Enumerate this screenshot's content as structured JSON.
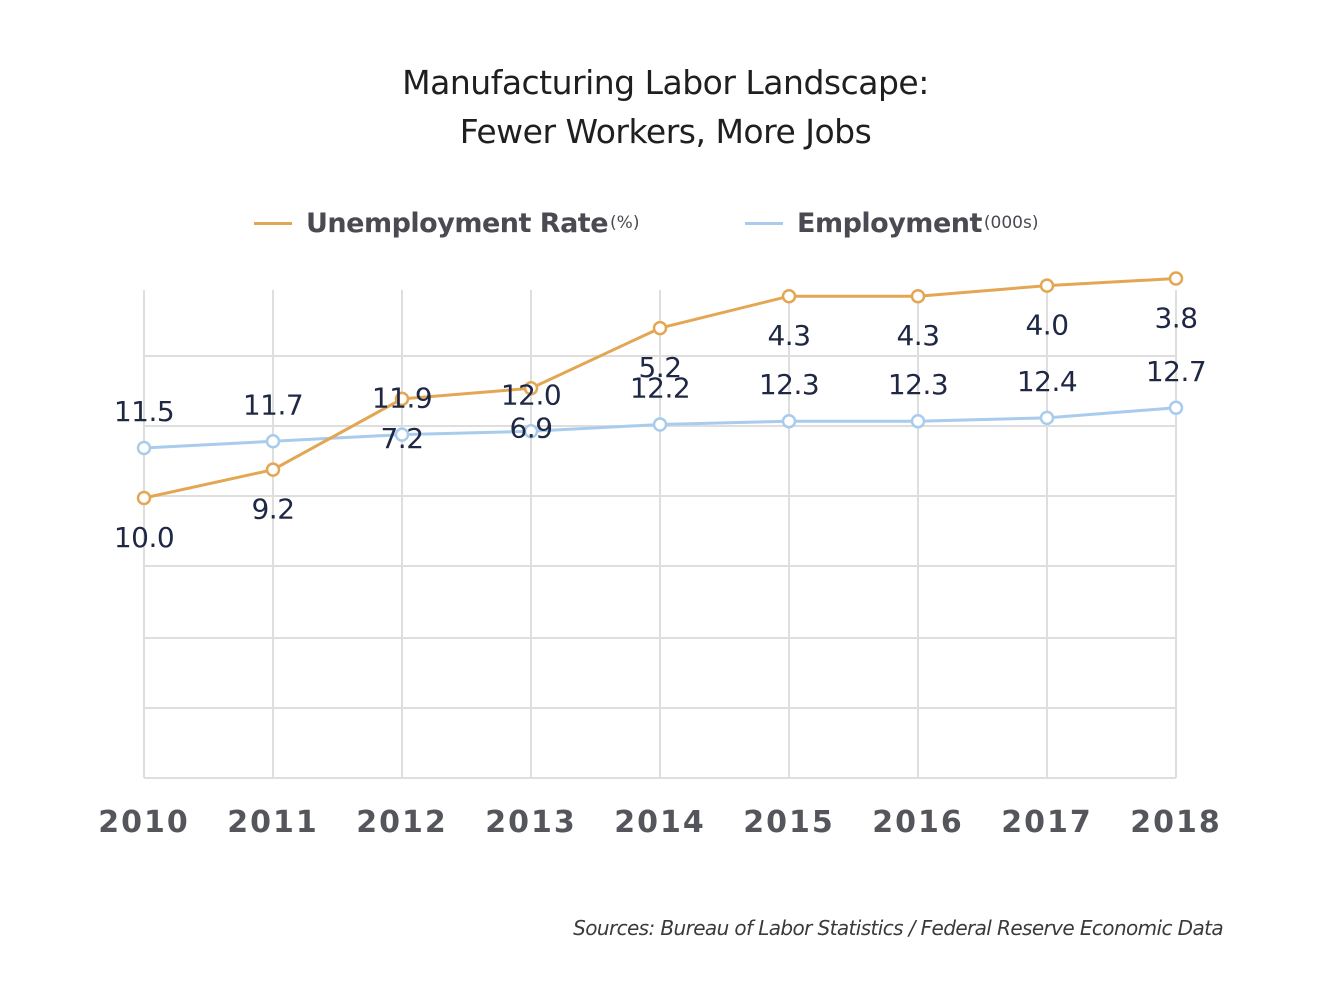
{
  "chart_data": {
    "type": "line",
    "title": "Manufacturing Labor Landscape:",
    "subtitle": "Fewer Workers, More Jobs",
    "categories": [
      "2010",
      "2011",
      "2012",
      "2013",
      "2014",
      "2015",
      "2016",
      "2017",
      "2018"
    ],
    "series": [
      {
        "name": "Unemployment Rate",
        "unit": "(%)",
        "color": "#e3a653",
        "values": [
          10.0,
          9.2,
          7.2,
          6.9,
          5.2,
          4.3,
          4.3,
          4.0,
          3.8
        ],
        "labels": [
          "10.0",
          "9.2",
          "7.2",
          "6.9",
          "5.2",
          "4.3",
          "4.3",
          "4.0",
          "3.8"
        ]
      },
      {
        "name": "Employment",
        "unit": "(000s)",
        "color": "#a9ccec",
        "values": [
          11.5,
          11.7,
          11.9,
          12.0,
          12.2,
          12.3,
          12.3,
          12.4,
          12.7
        ],
        "labels": [
          "11.5",
          "11.7",
          "11.9",
          "12.0",
          "12.2",
          "12.3",
          "12.3",
          "12.4",
          "12.7"
        ]
      }
    ],
    "grid": true,
    "legend_position": "top-center",
    "source": "Sources: Bureau of Labor Statistics / Federal Reserve Economic Data"
  }
}
